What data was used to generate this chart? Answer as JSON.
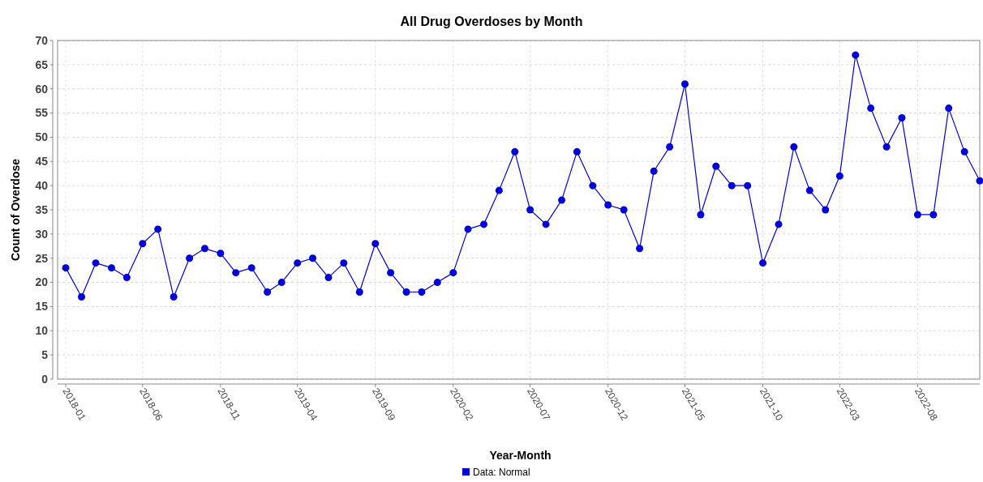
{
  "chart_data": {
    "type": "line",
    "title": "All Drug Overdoses by Month",
    "xlabel": "Year-Month",
    "ylabel": "Count of Overdose",
    "x": [
      "2018-01",
      "2018-02",
      "2018-03",
      "2018-04",
      "2018-05",
      "2018-06",
      "2018-07",
      "2018-08",
      "2018-09",
      "2018-10",
      "2018-11",
      "2018-12",
      "2019-01",
      "2019-02",
      "2019-03",
      "2019-04",
      "2019-05",
      "2019-06",
      "2019-07",
      "2019-08",
      "2019-09",
      "2019-10",
      "2019-11",
      "2019-12",
      "2020-01",
      "2020-02",
      "2020-03",
      "2020-04",
      "2020-05",
      "2020-06",
      "2020-07",
      "2020-08",
      "2020-09",
      "2020-10",
      "2020-11",
      "2020-12",
      "2021-01",
      "2021-02",
      "2021-03",
      "2021-04",
      "2021-05",
      "2021-06",
      "2021-07",
      "2021-08",
      "2021-09",
      "2021-10",
      "2021-11",
      "2021-12",
      "2022-01",
      "2022-02",
      "2022-03",
      "2022-04",
      "2022-05",
      "2022-06",
      "2022-07",
      "2022-08",
      "2022-09",
      "2022-10",
      "2022-11",
      "2022-12"
    ],
    "series": [
      {
        "name": "Data: Normal",
        "color": "#0000d8",
        "values": [
          23,
          17,
          24,
          23,
          21,
          28,
          31,
          17,
          25,
          27,
          26,
          22,
          23,
          18,
          20,
          24,
          25,
          21,
          24,
          18,
          28,
          22,
          18,
          18,
          20,
          22,
          31,
          32,
          39,
          47,
          35,
          32,
          37,
          47,
          40,
          36,
          35,
          27,
          43,
          48,
          61,
          34,
          44,
          40,
          40,
          24,
          32,
          48,
          39,
          35,
          42,
          67,
          56,
          48,
          54,
          34,
          34,
          56,
          47,
          41
        ]
      }
    ],
    "xlim": [
      "2017-12-16",
      "2022-12-01"
    ],
    "xticks": [
      "2018-01",
      "2018-06",
      "2018-11",
      "2019-04",
      "2019-09",
      "2020-02",
      "2020-07",
      "2020-12",
      "2021-05",
      "2021-10",
      "2022-03",
      "2022-08"
    ],
    "ylim": [
      0,
      70
    ],
    "yticks": [
      0,
      5,
      10,
      15,
      20,
      25,
      30,
      35,
      40,
      45,
      50,
      55,
      60,
      65,
      70
    ],
    "grid": true,
    "legend": "bottom",
    "marker": "circle",
    "line_style": "solid"
  }
}
